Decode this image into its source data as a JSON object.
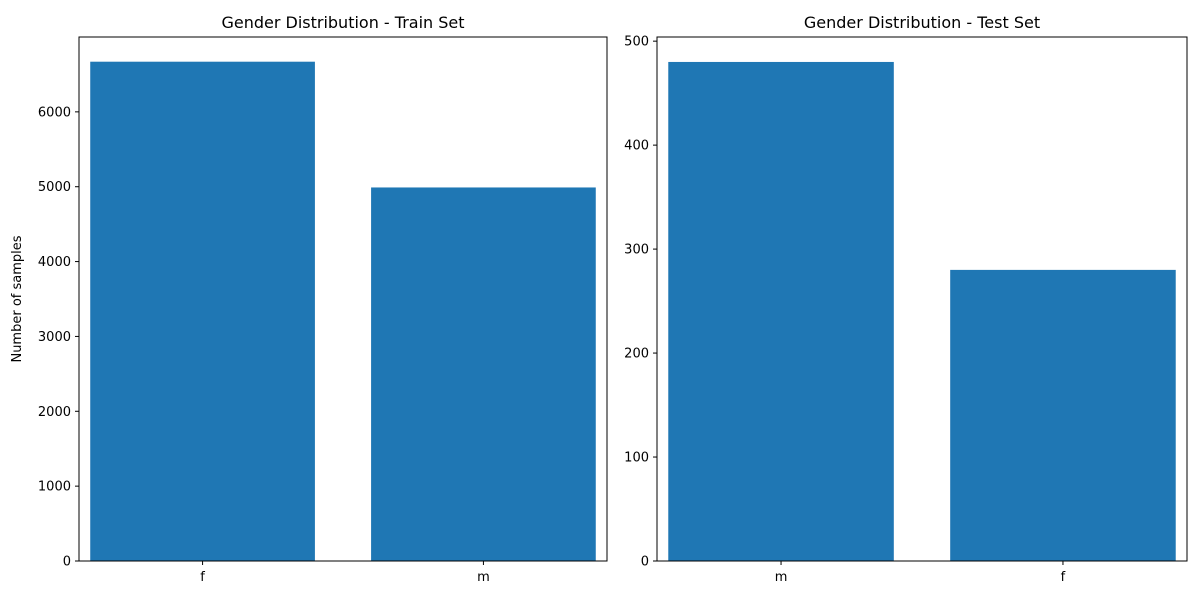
{
  "chart_data": [
    {
      "type": "bar",
      "title": "Gender Distribution - Train Set",
      "xlabel": "",
      "ylabel": "Number of samples",
      "categories": [
        "f",
        "m"
      ],
      "values": [
        6670,
        4990
      ],
      "ylim": [
        0,
        7000
      ],
      "yticks": [
        "0",
        "1000",
        "2000",
        "3000",
        "4000",
        "5000",
        "6000"
      ],
      "grid": false,
      "bar_color": "#1f77b4"
    },
    {
      "type": "bar",
      "title": "Gender Distribution - Test Set",
      "xlabel": "",
      "ylabel": "",
      "categories": [
        "m",
        "f"
      ],
      "values": [
        480,
        280
      ],
      "ylim": [
        0,
        504
      ],
      "yticks": [
        "0",
        "100",
        "200",
        "300",
        "400",
        "500"
      ],
      "grid": false,
      "bar_color": "#1f77b4"
    }
  ]
}
